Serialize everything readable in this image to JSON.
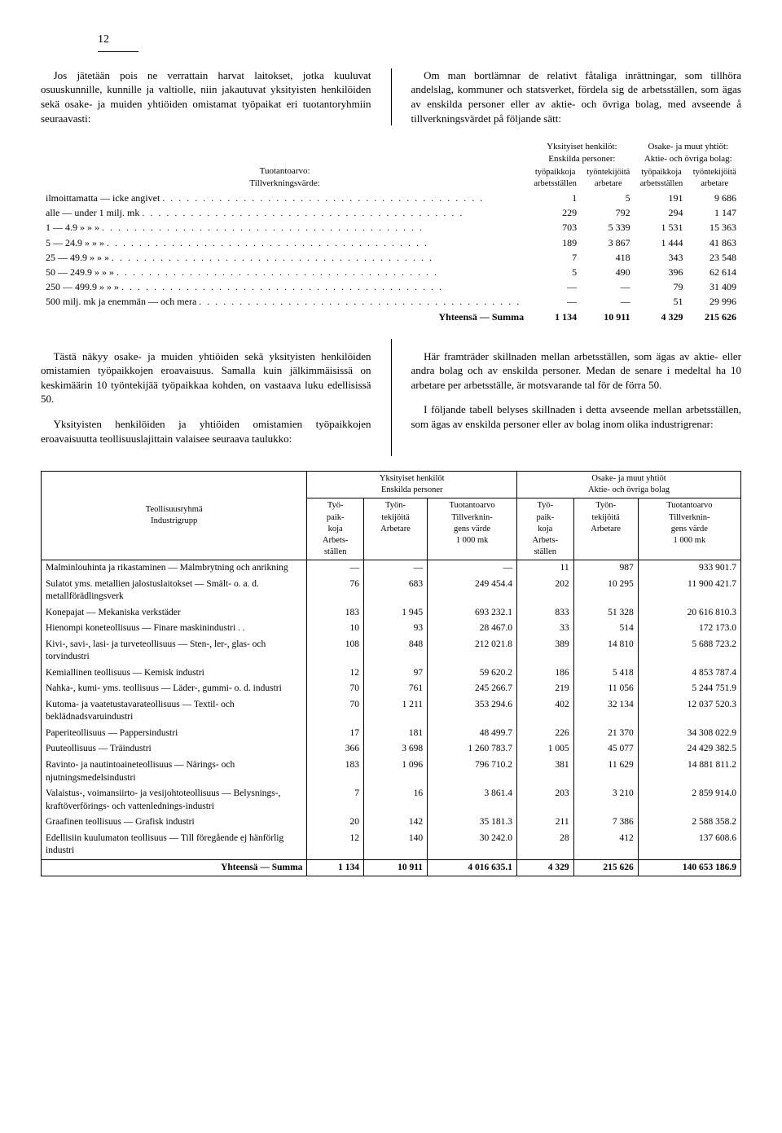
{
  "page_number": "12",
  "para_left_1": "Jos jätetään pois ne verrattain harvat laitokset, jotka kuuluvat osuuskunnille, kunnille ja valtiolle, niin jakautuvat yksityisten henkilöiden sekä osake- ja muiden yhtiöiden omistamat työpaikat eri tuotantoryhmiin seuraavasti:",
  "para_right_1": "Om man bortlämnar de relativt fåtaliga inrättningar, som tillhöra andelslag, kommuner och statsverket, fördela sig de arbetsställen, som ägas av enskilda personer eller av aktie- och övriga bolag, med avseende å tillverkningsvärdet på följande sätt:",
  "t1": {
    "hdr_tuotantoarvo": "Tuotantoarvo:",
    "hdr_tillverk": "Tillverkningsvärde:",
    "hdr_yksit": "Yksityiset henkilöt:",
    "hdr_ensk": "Enskilda personer:",
    "hdr_osake": "Osake- ja muut yhtiöt:",
    "hdr_aktie": "Aktie- och övriga bolag:",
    "sub_tyopaik": "työpaikkoja\narbetsställen",
    "sub_tyontek": "työntekijöitä\narbetare",
    "rows": [
      {
        "label": "ilmoittamatta — icke angivet",
        "c1": "1",
        "c2": "5",
        "c3": "191",
        "c4": "9 686"
      },
      {
        "label": "alle — under 1 milj. mk",
        "c1": "229",
        "c2": "792",
        "c3": "294",
        "c4": "1 147"
      },
      {
        "label": "1 — 4.9 » » »",
        "c1": "703",
        "c2": "5 339",
        "c3": "1 531",
        "c4": "15 363"
      },
      {
        "label": "5 — 24.9 » » »",
        "c1": "189",
        "c2": "3 867",
        "c3": "1 444",
        "c4": "41 863"
      },
      {
        "label": "25 — 49.9 » » »",
        "c1": "7",
        "c2": "418",
        "c3": "343",
        "c4": "23 548"
      },
      {
        "label": "50 — 249.9 » » »",
        "c1": "5",
        "c2": "490",
        "c3": "396",
        "c4": "62 614"
      },
      {
        "label": "250 — 499.9 » » »",
        "c1": "—",
        "c2": "—",
        "c3": "79",
        "c4": "31 409"
      },
      {
        "label": "500 milj. mk ja enemmän — och mera",
        "c1": "—",
        "c2": "—",
        "c3": "51",
        "c4": "29 996"
      }
    ],
    "summa_label": "Yhteensä — Summa",
    "summa": {
      "c1": "1 134",
      "c2": "10 911",
      "c3": "4 329",
      "c4": "215 626"
    }
  },
  "para_left_2a": "Tästä näkyy osake- ja muiden yhtiöiden sekä yksityisten henkilöiden omistamien työpaikkojen eroavaisuus. Samalla kuin jälkimmäisissä on keskimäärin 10 työntekijää työpaikkaa kohden, on vastaava luku edellisissä 50.",
  "para_left_2b": "Yksityisten henkilöiden ja yhtiöiden omistamien työpaikkojen eroavaisuutta teollisuuslajittain valaisee seuraava taulukko:",
  "para_right_2a": "Här framträder skillnaden mellan arbetsställen, som ägas av aktie- eller andra bolag och av enskilda personer. Medan de senare i medeltal ha 10 arbetare per arbetsställe, är motsvarande tal för de förra 50.",
  "para_right_2b": "I följande tabell belyses skillnaden i detta avseende mellan arbetsställen, som ägas av enskilda personer eller av bolag inom olika industrigrenar:",
  "t2": {
    "col_group": "Teollisuusryhmä\nIndustrigrupp",
    "g1": "Yksityiset henkilöt\nEnskilda personer",
    "g2": "Osake- ja muut yhtiöt\nAktie- och övriga bolag",
    "h_tyo": "Työ-\npaik-\nkoja\nArbets-\nställen",
    "h_tek": "Työn-\ntekijöitä\nArbetare",
    "h_tuot": "Tuotantoarvo\nTillverknin-\ngens värde\n1 000 mk",
    "rows": [
      {
        "label": "Malminlouhinta ja rikastaminen — Malmbrytning och anrikning",
        "a": "—",
        "b": "—",
        "c": "—",
        "d": "11",
        "e": "987",
        "f": "933 901.7"
      },
      {
        "label": "Sulatot yms. metallien jalostuslaitokset — Smält- o. a. d. metallförädlingsverk",
        "a": "76",
        "b": "683",
        "c": "249 454.4",
        "d": "202",
        "e": "10 295",
        "f": "11 900 421.7"
      },
      {
        "label": "Konepajat — Mekaniska verkstäder",
        "a": "183",
        "b": "1 945",
        "c": "693 232.1",
        "d": "833",
        "e": "51 328",
        "f": "20 616 810.3"
      },
      {
        "label": "Hienompi koneteollisuus — Finare maskinindustri . .",
        "a": "10",
        "b": "93",
        "c": "28 467.0",
        "d": "33",
        "e": "514",
        "f": "172 173.0"
      },
      {
        "label": "Kivi-, savi-, lasi- ja turveteollisuus — Sten-, ler-, glas- och torvindustri",
        "a": "108",
        "b": "848",
        "c": "212 021.8",
        "d": "389",
        "e": "14 810",
        "f": "5 688 723.2"
      },
      {
        "label": "Kemiallinen teollisuus — Kemisk industri",
        "a": "12",
        "b": "97",
        "c": "59 620.2",
        "d": "186",
        "e": "5 418",
        "f": "4 853 787.4"
      },
      {
        "label": "Nahka-, kumi- yms. teollisuus — Läder-, gummi- o. d. industri",
        "a": "70",
        "b": "761",
        "c": "245 266.7",
        "d": "219",
        "e": "11 056",
        "f": "5 244 751.9"
      },
      {
        "label": "Kutoma- ja vaatetustavarateollisuus — Textil- och beklädnadsvaruindustri",
        "a": "70",
        "b": "1 211",
        "c": "353 294.6",
        "d": "402",
        "e": "32 134",
        "f": "12 037 520.3"
      },
      {
        "label": "Paperiteollisuus — Pappersindustri",
        "a": "17",
        "b": "181",
        "c": "48 499.7",
        "d": "226",
        "e": "21 370",
        "f": "34 308 022.9"
      },
      {
        "label": "Puuteollisuus — Träindustri",
        "a": "366",
        "b": "3 698",
        "c": "1 260 783.7",
        "d": "1 005",
        "e": "45 077",
        "f": "24 429 382.5"
      },
      {
        "label": "Ravinto- ja nautintoaineteollisuus — Närings- och njutningsmedelsindustri",
        "a": "183",
        "b": "1 096",
        "c": "796 710.2",
        "d": "381",
        "e": "11 629",
        "f": "14 881 811.2"
      },
      {
        "label": "Valaistus-, voimansiirto- ja vesijohtoteollisuus — Belysnings-, kraftöverförings- och vattenlednings-industri",
        "a": "7",
        "b": "16",
        "c": "3 861.4",
        "d": "203",
        "e": "3 210",
        "f": "2 859 914.0"
      },
      {
        "label": "Graafinen teollisuus — Grafisk industri",
        "a": "20",
        "b": "142",
        "c": "35 181.3",
        "d": "211",
        "e": "7 386",
        "f": "2 588 358.2"
      },
      {
        "label": "Edellisiin kuulumaton teollisuus — Till föregående ej hänförlig industri",
        "a": "12",
        "b": "140",
        "c": "30 242.0",
        "d": "28",
        "e": "412",
        "f": "137 608.6"
      }
    ],
    "summa_label": "Yhteensä — Summa",
    "summa": {
      "a": "1 134",
      "b": "10 911",
      "c": "4 016 635.1",
      "d": "4 329",
      "e": "215 626",
      "f": "140 653 186.9"
    }
  }
}
